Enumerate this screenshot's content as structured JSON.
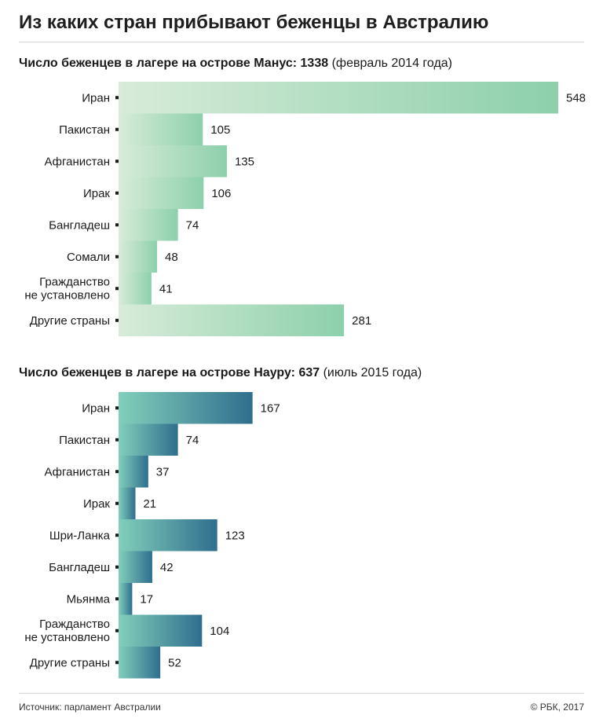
{
  "title": "Из каких стран прибывают беженцы в Австралию",
  "source": "Источник: парламент Австралии",
  "copyright": "© РБК, 2017",
  "colors": {
    "manus_light": "#d8ecd9",
    "manus_dark": "#8dd0ab",
    "nauru_light": "#82cfbb",
    "nauru_dark": "#2f6e8e"
  },
  "chart_data": [
    {
      "type": "bar",
      "orientation": "horizontal",
      "title_bold": "Число беженцев в лагере на острове Манус: 1338",
      "title_rest": " (февраль 2014 года)",
      "categories": [
        "Иран",
        "Пакистан",
        "Афганистан",
        "Ирак",
        "Бангладеш",
        "Сомали",
        "Гражданство\nне установлено",
        "Другие страны"
      ],
      "values": [
        548,
        105,
        135,
        106,
        74,
        48,
        41,
        281
      ],
      "xlim": [
        0,
        548
      ]
    },
    {
      "type": "bar",
      "orientation": "horizontal",
      "title_bold": "Число беженцев в лагере на острове Науру: 637",
      "title_rest": " (июль 2015 года)",
      "categories": [
        "Иран",
        "Пакистан",
        "Афганистан",
        "Ирак",
        "Шри-Ланка",
        "Бангладеш",
        "Мьянма",
        "Гражданство\nне установлено",
        "Другие страны"
      ],
      "values": [
        167,
        74,
        37,
        21,
        123,
        42,
        17,
        104,
        52
      ],
      "xlim": [
        0,
        548
      ]
    }
  ]
}
